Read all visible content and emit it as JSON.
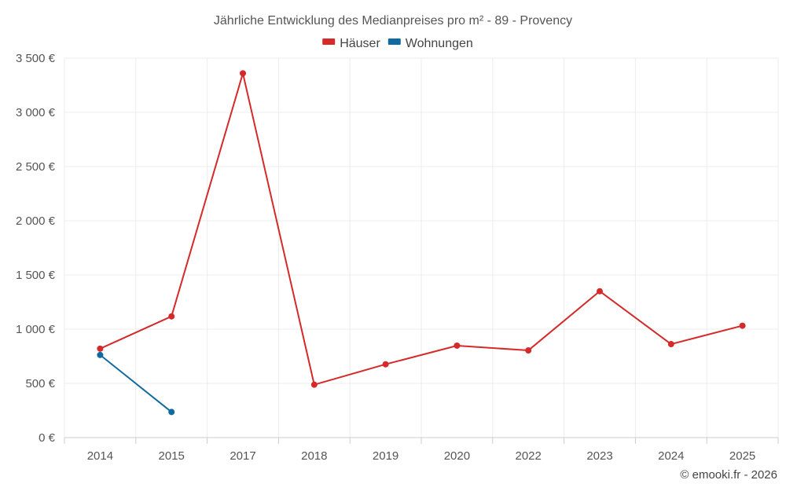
{
  "chart_data": {
    "type": "line",
    "title": "Jährliche Entwicklung des Medianpreises pro m² - 89 - Provency",
    "categories": [
      "2014",
      "2015",
      "2017",
      "2018",
      "2019",
      "2020",
      "2022",
      "2023",
      "2024",
      "2025"
    ],
    "series": [
      {
        "name": "Häuser",
        "color": "#d42a2a",
        "values": [
          820,
          1118,
          3360,
          488,
          676,
          848,
          804,
          1350,
          862,
          1032
        ]
      },
      {
        "name": "Wohnungen",
        "color": "#0e6aa0",
        "values": [
          762,
          236,
          null,
          null,
          null,
          null,
          null,
          null,
          null,
          null
        ]
      }
    ],
    "ylim": [
      0,
      3500
    ],
    "yticks": [
      0,
      500,
      1000,
      1500,
      2000,
      2500,
      3000,
      3500
    ],
    "ytick_labels": [
      "0 €",
      "500 €",
      "1 000 €",
      "1 500 €",
      "2 000 €",
      "2 500 €",
      "3 000 €",
      "3 500 €"
    ],
    "legend_position": "top-center",
    "grid": true,
    "credit": "© emooki.fr - 2026"
  }
}
